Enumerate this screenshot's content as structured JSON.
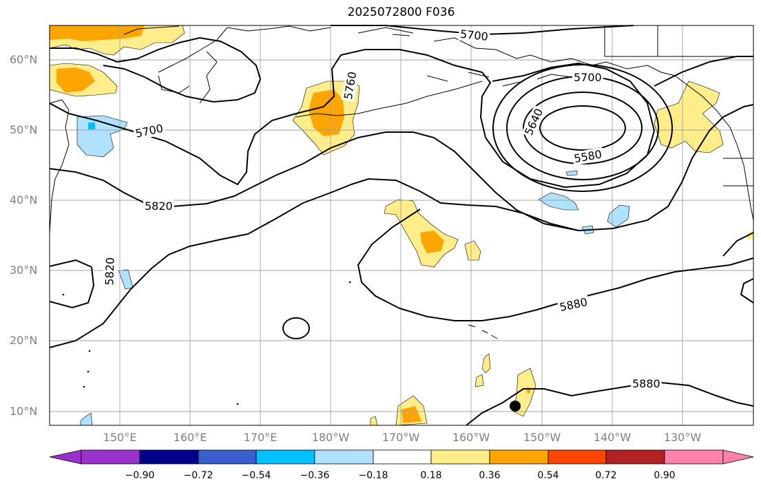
{
  "title": "2025072800 F036",
  "lat_labels": [
    "60°N",
    "50°N",
    "40°N",
    "30°N",
    "20°N",
    "10°N"
  ],
  "lon_labels": [
    "150°E",
    "160°E",
    "170°E",
    "180°W",
    "170°W",
    "160°W",
    "150°W",
    "140°W",
    "130°W"
  ],
  "contour_labels": [
    "5700",
    "5700",
    "5760",
    "5640",
    "5700",
    "5580",
    "5820",
    "5820",
    "5880",
    "5880"
  ],
  "colorbar": {
    "ticks": [
      "−0.90",
      "−0.72",
      "−0.54",
      "−0.36",
      "−0.18",
      "0.18",
      "0.36",
      "0.54",
      "0.72",
      "0.90"
    ],
    "colors": [
      "#9932cc",
      "#00008b",
      "#3a5fcd",
      "#00bfff",
      "#b0e2ff",
      "#ffffff",
      "#ffec8b",
      "#ffa500",
      "#ff4500",
      "#b22222",
      "#ff82ab"
    ]
  },
  "marker": "black-dot"
}
